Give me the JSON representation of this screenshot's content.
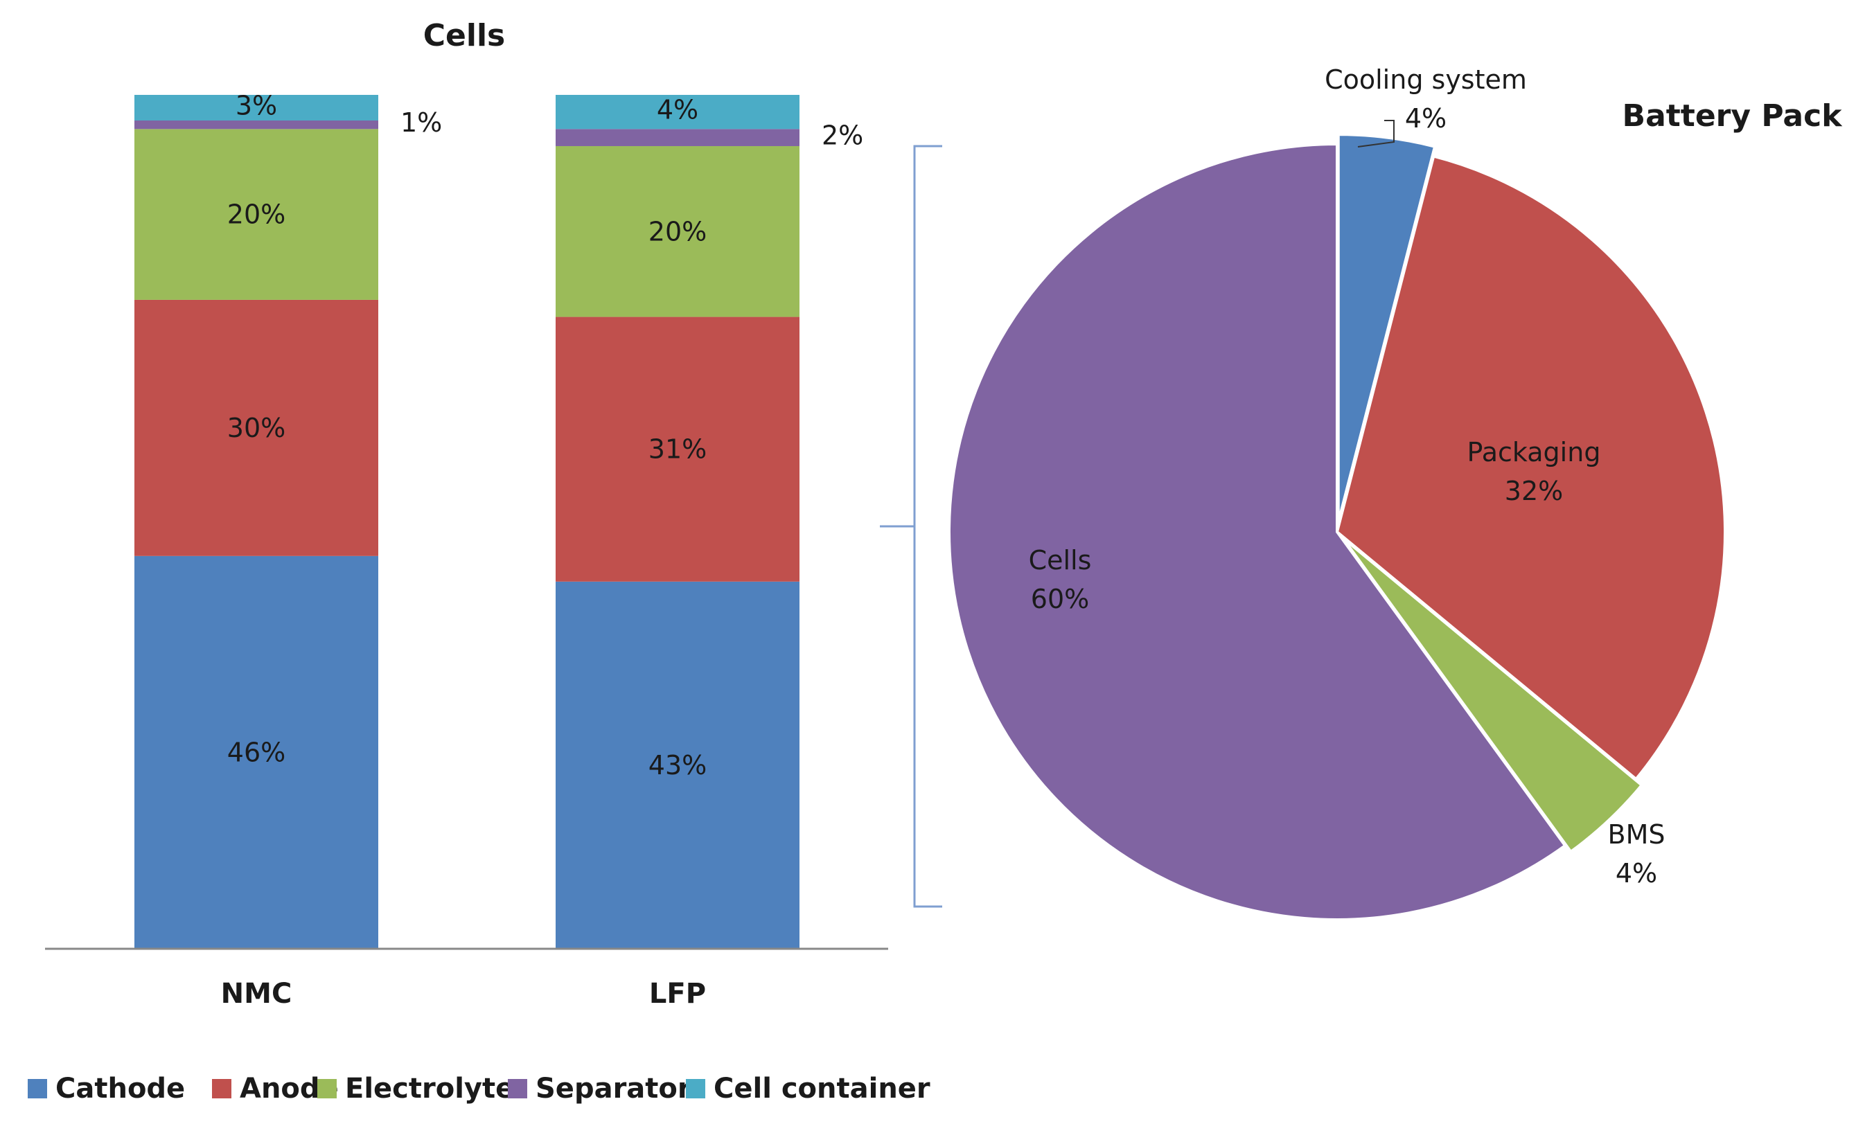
{
  "chart_data": [
    {
      "type": "bar",
      "stacked": true,
      "title": "Cells",
      "categories": [
        "NMC",
        "LFP"
      ],
      "series": [
        {
          "name": "Cathode",
          "color": "#4f81bd",
          "values": [
            46,
            43
          ]
        },
        {
          "name": "Anode",
          "color": "#c0504d",
          "values": [
            30,
            31
          ]
        },
        {
          "name": "Electrolyte",
          "color": "#9bbb59",
          "values": [
            20,
            20
          ]
        },
        {
          "name": "Separator",
          "color": "#8064a2",
          "values": [
            1,
            2
          ]
        },
        {
          "name": "Cell container",
          "color": "#4bacc6",
          "values": [
            3,
            4
          ]
        }
      ],
      "data_labels": [
        [
          "46%",
          "30%",
          "20%",
          "1%",
          "3%"
        ],
        [
          "43%",
          "31%",
          "20%",
          "2%",
          "4%"
        ]
      ],
      "ylim": [
        0,
        100
      ],
      "legend": "bottom"
    },
    {
      "type": "pie",
      "title": "Battery Pack",
      "slices": [
        {
          "name": "Cooling system",
          "value": 4,
          "label": "4%",
          "color": "#4f81bd"
        },
        {
          "name": "Packaging",
          "value": 32,
          "label": "32%",
          "color": "#c0504d"
        },
        {
          "name": "BMS",
          "value": 4,
          "label": "4%",
          "color": "#9bbb59"
        },
        {
          "name": "Cells",
          "value": 60,
          "label": "60%",
          "color": "#8064a2"
        }
      ]
    }
  ],
  "legend_items": [
    "Cathode",
    "Anode",
    "Electrolyte",
    "Separator",
    "Cell container"
  ]
}
